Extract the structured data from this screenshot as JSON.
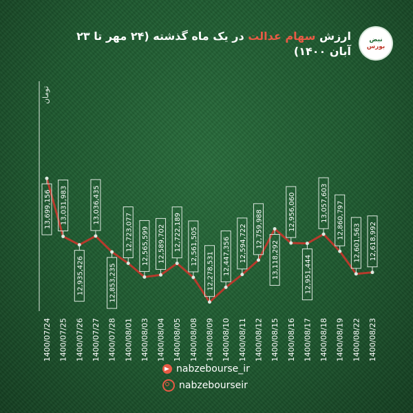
{
  "header": {
    "title_prefix": "ارزش",
    "title_highlight": "سهام عدالت",
    "title_suffix": "در یک ماه گذشته (۲۴ مهر تا ۲۳ آبان ۱۴۰۰)"
  },
  "logo": {
    "line1": "نبض",
    "line2": "بورس"
  },
  "footer": {
    "telegram": "nabzebourse_ir",
    "instagram": "nabzebourseir"
  },
  "colors": {
    "line": "#b83a2c",
    "label_text": "#ffffff",
    "highlight": "#e85a45"
  },
  "chart_data": {
    "type": "line",
    "ylabel": "تومان",
    "categories": [
      "1400/07/24",
      "1400/07/25",
      "1400/07/26",
      "1400/07/27",
      "1400/07/28",
      "1400/08/01",
      "1400/08/03",
      "1400/08/04",
      "1400/08/05",
      "1400/08/08",
      "1400/08/09",
      "1400/08/10",
      "1400/08/11",
      "1400/08/12",
      "1400/08/15",
      "1400/08/16",
      "1400/08/17",
      "1400/08/18",
      "1400/08/19",
      "1400/08/22",
      "1400/08/23"
    ],
    "values": [
      13699156,
      13031983,
      12935426,
      13036435,
      12853235,
      12723077,
      12565599,
      12589702,
      12722189,
      12561505,
      12278531,
      12447356,
      12594722,
      12759988,
      13118292,
      12956060,
      12951444,
      13057603,
      12860797,
      12601563,
      12618992
    ],
    "labels": [
      "13,699,156",
      "13,031,983",
      "12,935,426",
      "13,036,435",
      "12,853,235",
      "12,723,077",
      "12,565,599",
      "12,589,702",
      "12,722,189",
      "12,561,505",
      "12,278,531",
      "12,447,356",
      "12,594,722",
      "12,759,988",
      "13,118,292",
      "12,956,060",
      "12,951,444",
      "13,057,603",
      "12,860,797",
      "12,601,563",
      "12,618,992"
    ],
    "label_position": [
      "below",
      "above",
      "below",
      "above",
      "below",
      "above",
      "above",
      "above",
      "above",
      "above",
      "above",
      "above",
      "above",
      "above",
      "below",
      "above",
      "below",
      "above",
      "above",
      "above",
      "above"
    ],
    "ylim": [
      12150000,
      13850000
    ],
    "grid": false,
    "legend": "none"
  }
}
